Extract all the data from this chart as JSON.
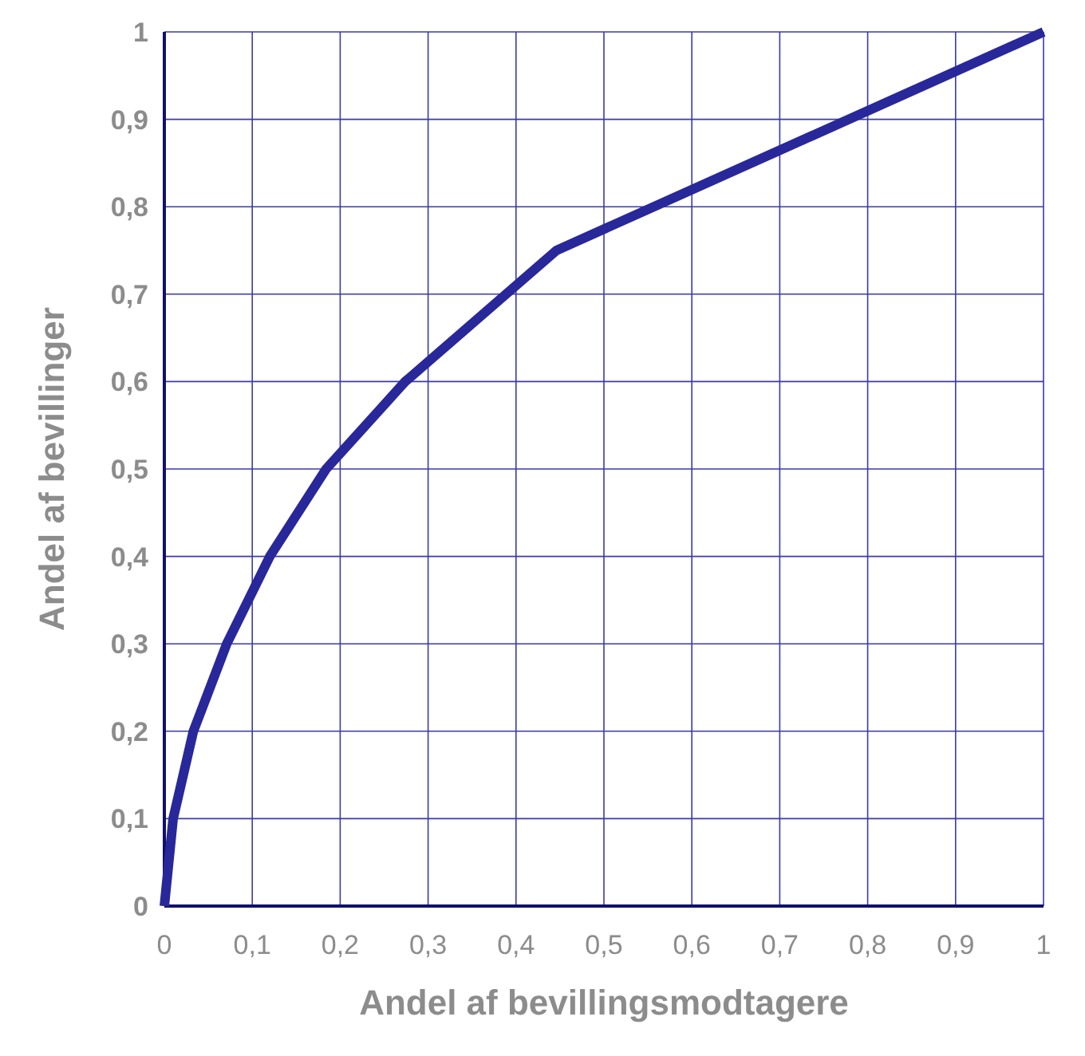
{
  "chart_data": {
    "type": "line",
    "xlabel": "Andel af bevillingsmodtagere",
    "ylabel": "Andel af bevillinger",
    "x": [
      0,
      0.01,
      0.033,
      0.071,
      0.12,
      0.184,
      0.274,
      0.446,
      1
    ],
    "series": [
      {
        "color": "#28289a",
        "values": [
          0,
          0.1,
          0.2,
          0.3,
          0.4,
          0.5,
          0.6,
          0.75,
          1
        ]
      }
    ],
    "xlim": [
      0,
      1
    ],
    "ylim": [
      0,
      1
    ],
    "xticks": [
      0,
      {
        "value": 0.1,
        "label": "0,1"
      },
      {
        "value": 0.2,
        "label": "0,2"
      },
      {
        "value": 0.3,
        "label": "0,3"
      },
      {
        "value": 0.4,
        "label": "0,4"
      },
      {
        "value": 0.5,
        "label": "0,5"
      },
      {
        "value": 0.6,
        "label": "0,6"
      },
      {
        "value": 0.7,
        "label": "0,7"
      },
      {
        "value": 0.8,
        "label": "0,8"
      },
      {
        "value": 0.9,
        "label": "0,9"
      },
      1
    ],
    "yticks": [
      0,
      {
        "value": 0.1,
        "label": "0,1"
      },
      {
        "value": 0.2,
        "label": "0,2"
      },
      {
        "value": 0.3,
        "label": "0,3"
      },
      {
        "value": 0.4,
        "label": "0,4"
      },
      {
        "value": 0.5,
        "label": "0,5"
      },
      {
        "value": 0.6,
        "label": "0,6"
      },
      {
        "value": 0.7,
        "label": "0,7"
      },
      {
        "value": 0.8,
        "label": "0,8"
      },
      {
        "value": 0.9,
        "label": "0,9"
      },
      1
    ],
    "grid": true,
    "marker": "none",
    "line_style": "solid"
  }
}
